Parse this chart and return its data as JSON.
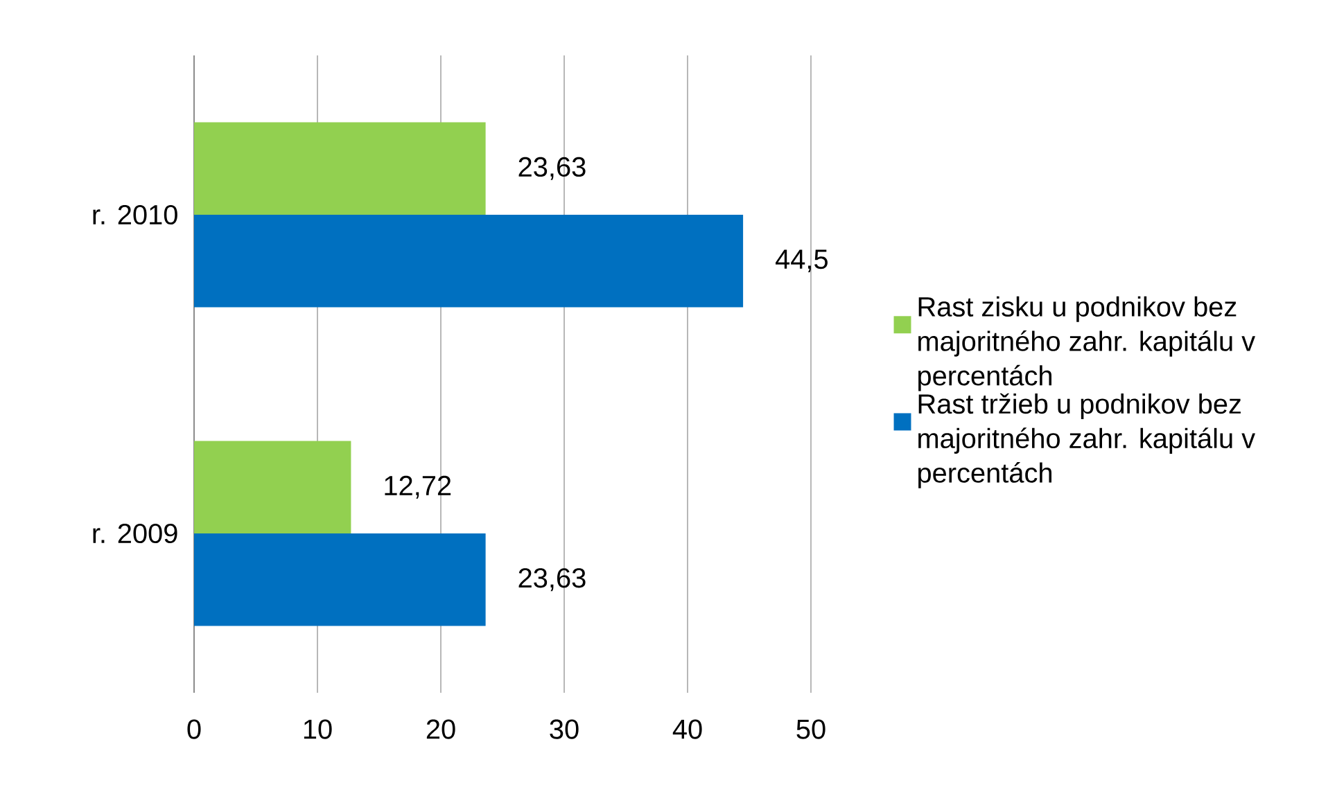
{
  "chart_data": {
    "type": "bar",
    "orientation": "horizontal",
    "categories": [
      "r. 2010",
      "r. 2009"
    ],
    "series": [
      {
        "name": "Rast zisku u podnikov bez majoritného zahr. kapitálu v percentách",
        "color": "#92d050",
        "values": [
          23.63,
          12.72
        ],
        "value_labels": [
          "23,63",
          "12,72"
        ]
      },
      {
        "name": "Rast tržieb u podnikov bez majoritného zahr. kapitálu v percentách",
        "color": "#0070c0",
        "values": [
          44.5,
          23.63
        ],
        "value_labels": [
          "44,5",
          "23,63"
        ]
      }
    ],
    "xlim": [
      0,
      50
    ],
    "xticks": [
      0,
      10,
      20,
      30,
      40,
      50
    ],
    "grid": "x",
    "legend": "right"
  }
}
